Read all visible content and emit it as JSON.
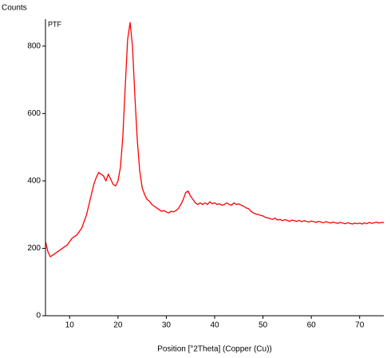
{
  "chart_data": {
    "type": "line",
    "y_axis_label": "Counts",
    "annotation": "PTF",
    "x_axis_label": "Position [°2Theta] (Copper (Cu))",
    "xlim": [
      5,
      75
    ],
    "xticks": [
      10,
      20,
      30,
      40,
      50,
      60,
      70
    ],
    "ylim": [
      0,
      880
    ],
    "yticks": [
      0,
      200,
      400,
      600,
      800
    ],
    "x": [
      5,
      5.5,
      6,
      6.5,
      7,
      7.5,
      8,
      8.5,
      9,
      9.5,
      10,
      10.5,
      11,
      11.5,
      12,
      12.5,
      13,
      13.5,
      14,
      14.5,
      15,
      15.5,
      16,
      16.5,
      17,
      17.5,
      18,
      18.5,
      19,
      19.5,
      20,
      20.5,
      21,
      21.5,
      22,
      22.5,
      23,
      23.5,
      24,
      24.5,
      25,
      25.5,
      26,
      26.5,
      27,
      27.5,
      28,
      28.5,
      29,
      29.5,
      30,
      30.5,
      31,
      31.5,
      32,
      32.5,
      33,
      33.5,
      34,
      34.5,
      35,
      35.5,
      36,
      36.5,
      37,
      37.5,
      38,
      38.5,
      39,
      39.5,
      40,
      40.5,
      41,
      41.5,
      42,
      42.5,
      43,
      43.5,
      44,
      44.5,
      45,
      45.5,
      46,
      46.5,
      47,
      47.5,
      48,
      48.5,
      49,
      49.5,
      50,
      50.5,
      51,
      51.5,
      52,
      52.5,
      53,
      53.5,
      54,
      54.5,
      55,
      55.5,
      56,
      56.5,
      57,
      57.5,
      58,
      58.5,
      59,
      59.5,
      60,
      60.5,
      61,
      61.5,
      62,
      62.5,
      63,
      63.5,
      64,
      64.5,
      65,
      65.5,
      66,
      66.5,
      67,
      67.5,
      68,
      68.5,
      69,
      69.5,
      70,
      70.5,
      71,
      71.5,
      72,
      72.5,
      73,
      73.5,
      74,
      74.5,
      75
    ],
    "series": [
      {
        "color": "#ff0000",
        "values": [
          220,
          190,
          175,
          180,
          185,
          190,
          195,
          200,
          205,
          210,
          220,
          230,
          235,
          240,
          250,
          260,
          280,
          300,
          330,
          360,
          390,
          410,
          425,
          420,
          415,
          400,
          420,
          405,
          390,
          385,
          400,
          440,
          530,
          680,
          820,
          870,
          800,
          650,
          520,
          430,
          380,
          360,
          345,
          340,
          330,
          325,
          320,
          315,
          310,
          312,
          308,
          305,
          310,
          308,
          312,
          318,
          330,
          345,
          365,
          370,
          355,
          345,
          335,
          330,
          335,
          330,
          335,
          330,
          338,
          332,
          335,
          330,
          332,
          328,
          330,
          335,
          330,
          328,
          335,
          330,
          332,
          328,
          325,
          320,
          318,
          310,
          305,
          302,
          300,
          298,
          296,
          292,
          290,
          288,
          286,
          290,
          284,
          286,
          282,
          285,
          283,
          280,
          284,
          282,
          280,
          283,
          279,
          282,
          280,
          278,
          281,
          279,
          277,
          280,
          278,
          276,
          279,
          277,
          275,
          278,
          276,
          274,
          277,
          275,
          273,
          276,
          274,
          272,
          275,
          273,
          275,
          272,
          276,
          273,
          277,
          274,
          276,
          278,
          275,
          277,
          276
        ]
      }
    ]
  }
}
